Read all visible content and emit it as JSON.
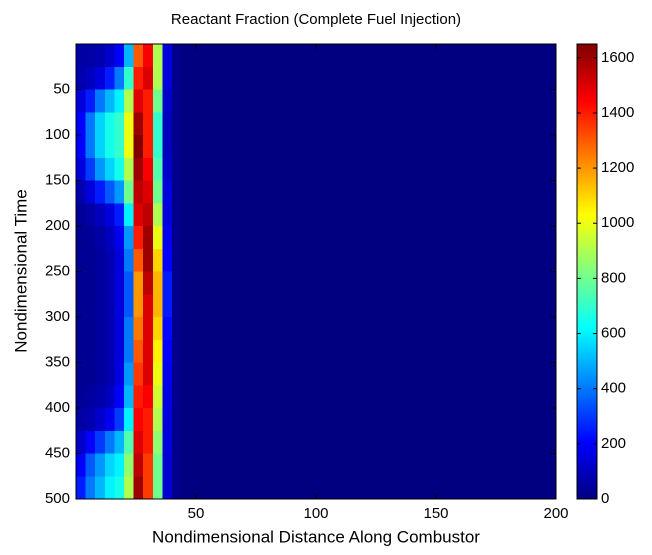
{
  "chart_data": {
    "type": "heatmap",
    "title": "Reactant Fraction (Complete Fuel Injection)",
    "xlabel": "Nondimensional Distance Along Combustor",
    "ylabel": "Nondimensional Time",
    "x": [
      2,
      6,
      10,
      14,
      18,
      22,
      26,
      30,
      34,
      38,
      42,
      46,
      50,
      54,
      58,
      62,
      66,
      70,
      74,
      78,
      82,
      86,
      90,
      94,
      98,
      102,
      106,
      110,
      114,
      118,
      122,
      126,
      130,
      134,
      138,
      142,
      146,
      150,
      154,
      158,
      162,
      166,
      170,
      174,
      178,
      182,
      186,
      190,
      194,
      198
    ],
    "y": [
      12.5,
      37.5,
      62.5,
      87.5,
      112.5,
      137.5,
      162.5,
      187.5,
      212.5,
      237.5,
      262.5,
      287.5,
      312.5,
      337.5,
      362.5,
      387.5,
      412.5,
      437.5,
      462.5,
      487.5
    ],
    "z": [
      [
        60,
        60,
        80,
        120,
        200,
        500,
        1300,
        1450,
        900,
        150,
        20,
        0,
        0,
        0,
        0,
        0,
        0,
        0,
        0,
        0,
        0,
        0,
        0,
        0,
        0,
        0,
        0,
        0,
        0,
        0,
        0,
        0,
        0,
        0,
        0,
        0,
        0,
        0,
        0,
        0,
        0,
        0,
        0,
        0,
        0,
        0,
        0,
        0,
        0,
        0
      ],
      [
        80,
        100,
        150,
        250,
        400,
        700,
        1400,
        1500,
        900,
        150,
        20,
        0,
        0,
        0,
        0,
        0,
        0,
        0,
        0,
        0,
        0,
        0,
        0,
        0,
        0,
        0,
        0,
        0,
        0,
        0,
        0,
        0,
        0,
        0,
        0,
        0,
        0,
        0,
        0,
        0,
        0,
        0,
        0,
        0,
        0,
        0,
        0,
        0,
        0,
        0
      ],
      [
        150,
        250,
        400,
        500,
        600,
        900,
        1500,
        1400,
        800,
        120,
        20,
        0,
        0,
        0,
        0,
        0,
        0,
        0,
        0,
        0,
        0,
        0,
        0,
        0,
        0,
        0,
        0,
        0,
        0,
        0,
        0,
        0,
        0,
        0,
        0,
        0,
        0,
        0,
        0,
        0,
        0,
        0,
        0,
        0,
        0,
        0,
        0,
        0,
        0,
        0
      ],
      [
        200,
        400,
        550,
        650,
        700,
        1000,
        1600,
        1400,
        700,
        100,
        20,
        0,
        0,
        0,
        0,
        0,
        0,
        0,
        0,
        0,
        0,
        0,
        0,
        0,
        0,
        0,
        0,
        0,
        0,
        0,
        0,
        0,
        0,
        0,
        0,
        0,
        0,
        0,
        0,
        0,
        0,
        0,
        0,
        0,
        0,
        0,
        0,
        0,
        0,
        0
      ],
      [
        200,
        400,
        550,
        650,
        700,
        1000,
        1650,
        1400,
        700,
        100,
        20,
        0,
        0,
        0,
        0,
        0,
        0,
        0,
        0,
        0,
        0,
        0,
        0,
        0,
        0,
        0,
        0,
        0,
        0,
        0,
        0,
        0,
        0,
        0,
        0,
        0,
        0,
        0,
        0,
        0,
        0,
        0,
        0,
        0,
        0,
        0,
        0,
        0,
        0,
        0
      ],
      [
        150,
        300,
        450,
        550,
        650,
        900,
        1600,
        1450,
        750,
        120,
        20,
        0,
        0,
        0,
        0,
        0,
        0,
        0,
        0,
        0,
        0,
        0,
        0,
        0,
        0,
        0,
        0,
        0,
        0,
        0,
        0,
        0,
        0,
        0,
        0,
        0,
        0,
        0,
        0,
        0,
        0,
        0,
        0,
        0,
        0,
        0,
        0,
        0,
        0,
        0
      ],
      [
        80,
        150,
        250,
        350,
        450,
        800,
        1550,
        1500,
        800,
        150,
        20,
        0,
        0,
        0,
        0,
        0,
        0,
        0,
        0,
        0,
        0,
        0,
        0,
        0,
        0,
        0,
        0,
        0,
        0,
        0,
        0,
        0,
        0,
        0,
        0,
        0,
        0,
        0,
        0,
        0,
        0,
        0,
        0,
        0,
        0,
        0,
        0,
        0,
        0,
        0
      ],
      [
        40,
        60,
        100,
        150,
        250,
        600,
        1500,
        1550,
        900,
        150,
        20,
        0,
        0,
        0,
        0,
        0,
        0,
        0,
        0,
        0,
        0,
        0,
        0,
        0,
        0,
        0,
        0,
        0,
        0,
        0,
        0,
        0,
        0,
        0,
        0,
        0,
        0,
        0,
        0,
        0,
        0,
        0,
        0,
        0,
        0,
        0,
        0,
        0,
        0,
        0
      ],
      [
        30,
        40,
        60,
        100,
        180,
        450,
        1400,
        1600,
        1000,
        180,
        20,
        0,
        0,
        0,
        0,
        0,
        0,
        0,
        0,
        0,
        0,
        0,
        0,
        0,
        0,
        0,
        0,
        0,
        0,
        0,
        0,
        0,
        0,
        0,
        0,
        0,
        0,
        0,
        0,
        0,
        0,
        0,
        0,
        0,
        0,
        0,
        0,
        0,
        0,
        0
      ],
      [
        30,
        30,
        50,
        80,
        150,
        400,
        1300,
        1600,
        1100,
        200,
        20,
        0,
        0,
        0,
        0,
        0,
        0,
        0,
        0,
        0,
        0,
        0,
        0,
        0,
        0,
        0,
        0,
        0,
        0,
        0,
        0,
        0,
        0,
        0,
        0,
        0,
        0,
        0,
        0,
        0,
        0,
        0,
        0,
        0,
        0,
        0,
        0,
        0,
        0,
        0
      ],
      [
        30,
        30,
        50,
        80,
        150,
        350,
        1200,
        1550,
        1150,
        250,
        20,
        0,
        0,
        0,
        0,
        0,
        0,
        0,
        0,
        0,
        0,
        0,
        0,
        0,
        0,
        0,
        0,
        0,
        0,
        0,
        0,
        0,
        0,
        0,
        0,
        0,
        0,
        0,
        0,
        0,
        0,
        0,
        0,
        0,
        0,
        0,
        0,
        0,
        0,
        0
      ],
      [
        30,
        30,
        50,
        80,
        150,
        350,
        1200,
        1500,
        1150,
        250,
        20,
        0,
        0,
        0,
        0,
        0,
        0,
        0,
        0,
        0,
        0,
        0,
        0,
        0,
        0,
        0,
        0,
        0,
        0,
        0,
        0,
        0,
        0,
        0,
        0,
        0,
        0,
        0,
        0,
        0,
        0,
        0,
        0,
        0,
        0,
        0,
        0,
        0,
        0,
        0
      ],
      [
        30,
        30,
        50,
        80,
        150,
        400,
        1250,
        1500,
        1100,
        220,
        20,
        0,
        0,
        0,
        0,
        0,
        0,
        0,
        0,
        0,
        0,
        0,
        0,
        0,
        0,
        0,
        0,
        0,
        0,
        0,
        0,
        0,
        0,
        0,
        0,
        0,
        0,
        0,
        0,
        0,
        0,
        0,
        0,
        0,
        0,
        0,
        0,
        0,
        0,
        0
      ],
      [
        30,
        30,
        50,
        80,
        150,
        400,
        1300,
        1500,
        1050,
        200,
        20,
        0,
        0,
        0,
        0,
        0,
        0,
        0,
        0,
        0,
        0,
        0,
        0,
        0,
        0,
        0,
        0,
        0,
        0,
        0,
        0,
        0,
        0,
        0,
        0,
        0,
        0,
        0,
        0,
        0,
        0,
        0,
        0,
        0,
        0,
        0,
        0,
        0,
        0,
        0
      ],
      [
        30,
        30,
        50,
        80,
        160,
        450,
        1350,
        1500,
        1000,
        180,
        20,
        0,
        0,
        0,
        0,
        0,
        0,
        0,
        0,
        0,
        0,
        0,
        0,
        0,
        0,
        0,
        0,
        0,
        0,
        0,
        0,
        0,
        0,
        0,
        0,
        0,
        0,
        0,
        0,
        0,
        0,
        0,
        0,
        0,
        0,
        0,
        0,
        0,
        0,
        0
      ],
      [
        40,
        50,
        70,
        100,
        200,
        500,
        1400,
        1450,
        950,
        160,
        20,
        0,
        0,
        0,
        0,
        0,
        0,
        0,
        0,
        0,
        0,
        0,
        0,
        0,
        0,
        0,
        0,
        0,
        0,
        0,
        0,
        0,
        0,
        0,
        0,
        0,
        0,
        0,
        0,
        0,
        0,
        0,
        0,
        0,
        0,
        0,
        0,
        0,
        0,
        0
      ],
      [
        60,
        80,
        120,
        180,
        300,
        600,
        1450,
        1400,
        900,
        150,
        20,
        0,
        0,
        0,
        0,
        0,
        0,
        0,
        0,
        0,
        0,
        0,
        0,
        0,
        0,
        0,
        0,
        0,
        0,
        0,
        0,
        0,
        0,
        0,
        0,
        0,
        0,
        0,
        0,
        0,
        0,
        0,
        0,
        0,
        0,
        0,
        0,
        0,
        0,
        0
      ],
      [
        120,
        200,
        300,
        400,
        500,
        750,
        1500,
        1400,
        850,
        150,
        20,
        0,
        0,
        0,
        0,
        0,
        0,
        0,
        0,
        0,
        0,
        0,
        0,
        0,
        0,
        0,
        0,
        0,
        0,
        0,
        0,
        0,
        0,
        0,
        0,
        0,
        0,
        0,
        0,
        0,
        0,
        0,
        0,
        0,
        0,
        0,
        0,
        0,
        0,
        0
      ],
      [
        200,
        350,
        450,
        550,
        600,
        850,
        1550,
        1350,
        800,
        130,
        20,
        0,
        0,
        0,
        0,
        0,
        0,
        0,
        0,
        0,
        0,
        0,
        0,
        0,
        0,
        0,
        0,
        0,
        0,
        0,
        0,
        0,
        0,
        0,
        0,
        0,
        0,
        0,
        0,
        0,
        0,
        0,
        0,
        0,
        0,
        0,
        0,
        0,
        0,
        0
      ],
      [
        250,
        400,
        500,
        600,
        650,
        900,
        1600,
        1350,
        800,
        130,
        20,
        0,
        0,
        0,
        0,
        0,
        0,
        0,
        0,
        0,
        0,
        0,
        0,
        0,
        0,
        0,
        0,
        0,
        0,
        0,
        0,
        0,
        0,
        0,
        0,
        0,
        0,
        0,
        0,
        0,
        0,
        0,
        0,
        0,
        0,
        0,
        0,
        0,
        0,
        0
      ]
    ],
    "xlim": [
      0,
      200
    ],
    "xticks": [
      50,
      100,
      150,
      200
    ],
    "ylim": [
      0,
      500
    ],
    "yticks": [
      50,
      100,
      150,
      200,
      250,
      300,
      350,
      400,
      450,
      500
    ],
    "yreverse": true,
    "colormap": "jet",
    "clim": [
      0,
      1650
    ],
    "cticks": [
      0,
      200,
      400,
      600,
      800,
      1000,
      1200,
      1400,
      1600
    ]
  }
}
